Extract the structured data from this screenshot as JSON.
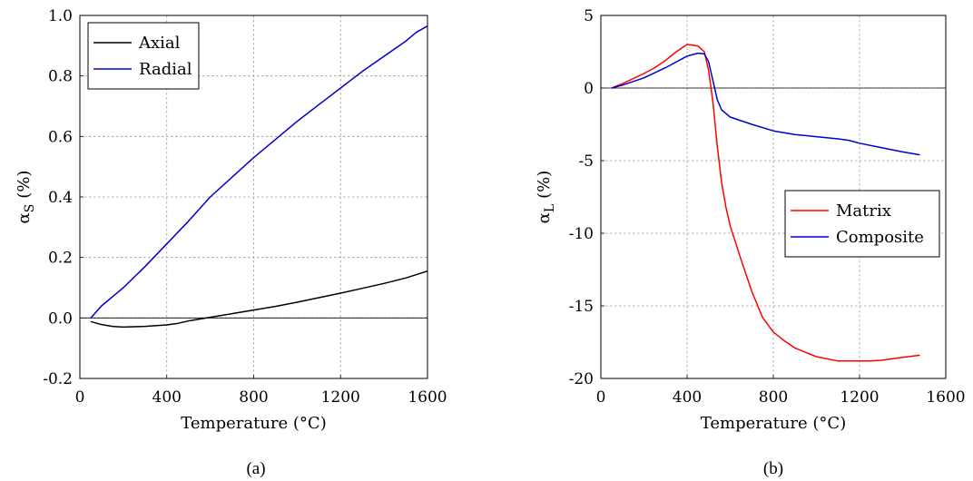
{
  "chart_data": [
    {
      "type": "line",
      "title": "",
      "caption": "(a)",
      "xlabel": "Temperature (°C)",
      "ylabel": {
        "symbol": "α",
        "subscript": "S",
        "unit": "(%)"
      },
      "xlim": [
        0,
        1600
      ],
      "ylim": [
        -0.2,
        1.0
      ],
      "xticks": [
        0,
        400,
        800,
        1200,
        1600
      ],
      "yticks": [
        -0.2,
        0.0,
        0.2,
        0.4,
        0.6,
        0.8,
        1.0
      ],
      "ytick_labels": [
        "-0.2",
        "0.0",
        "0.2",
        "0.4",
        "0.6",
        "0.8",
        "1.0"
      ],
      "grid": true,
      "legend_position": "top-left",
      "series": [
        {
          "name": "Axial",
          "color": "#000000",
          "x": [
            50,
            100,
            150,
            200,
            300,
            400,
            450,
            500,
            600,
            700,
            800,
            900,
            1000,
            1100,
            1200,
            1300,
            1400,
            1500,
            1600
          ],
          "y": [
            -0.012,
            -0.022,
            -0.028,
            -0.03,
            -0.028,
            -0.023,
            -0.018,
            -0.01,
            0.002,
            0.014,
            0.026,
            0.038,
            0.052,
            0.067,
            0.082,
            0.098,
            0.114,
            0.132,
            0.155
          ]
        },
        {
          "name": "Radial",
          "color": "#0000cc",
          "x": [
            50,
            100,
            200,
            300,
            400,
            500,
            600,
            700,
            800,
            900,
            1000,
            1100,
            1200,
            1300,
            1400,
            1500,
            1550,
            1600
          ],
          "y": [
            0.0,
            0.04,
            0.1,
            0.17,
            0.245,
            0.32,
            0.4,
            0.465,
            0.53,
            0.59,
            0.65,
            0.705,
            0.76,
            0.815,
            0.865,
            0.915,
            0.945,
            0.965
          ]
        }
      ]
    },
    {
      "type": "line",
      "title": "",
      "caption": "(b)",
      "xlabel": "Temperature (°C)",
      "ylabel": {
        "symbol": "α",
        "subscript": "L",
        "unit": "(%)"
      },
      "xlim": [
        0,
        1600
      ],
      "ylim": [
        -20,
        5
      ],
      "xticks": [
        0,
        400,
        800,
        1200,
        1600
      ],
      "yticks": [
        -20,
        -15,
        -10,
        -5,
        0,
        5
      ],
      "ytick_labels": [
        "-20",
        "-15",
        "-10",
        "-5",
        "0",
        "5"
      ],
      "grid": true,
      "legend_position": "center-right",
      "series": [
        {
          "name": "Matrix",
          "color": "#ff0000",
          "x": [
            50,
            100,
            200,
            250,
            300,
            350,
            400,
            450,
            480,
            500,
            520,
            540,
            560,
            580,
            600,
            650,
            700,
            750,
            800,
            850,
            900,
            1000,
            1100,
            1150,
            1200,
            1250,
            1300,
            1400,
            1480
          ],
          "y": [
            0.0,
            0.3,
            1.0,
            1.4,
            1.9,
            2.5,
            3.0,
            2.9,
            2.5,
            1.2,
            -1.0,
            -4.0,
            -6.5,
            -8.2,
            -9.5,
            -11.8,
            -14.0,
            -15.8,
            -16.8,
            -17.4,
            -17.9,
            -18.5,
            -18.8,
            -18.8,
            -18.8,
            -18.8,
            -18.75,
            -18.55,
            -18.4
          ]
        },
        {
          "name": "Composite",
          "color": "#0000cc",
          "x": [
            50,
            100,
            200,
            300,
            400,
            450,
            480,
            500,
            520,
            540,
            560,
            600,
            700,
            800,
            900,
            1000,
            1100,
            1150,
            1200,
            1300,
            1400,
            1480
          ],
          "y": [
            0.0,
            0.2,
            0.7,
            1.4,
            2.2,
            2.4,
            2.35,
            1.8,
            0.5,
            -0.8,
            -1.5,
            -2.0,
            -2.5,
            -2.95,
            -3.2,
            -3.35,
            -3.5,
            -3.6,
            -3.8,
            -4.1,
            -4.4,
            -4.6
          ]
        }
      ]
    }
  ]
}
